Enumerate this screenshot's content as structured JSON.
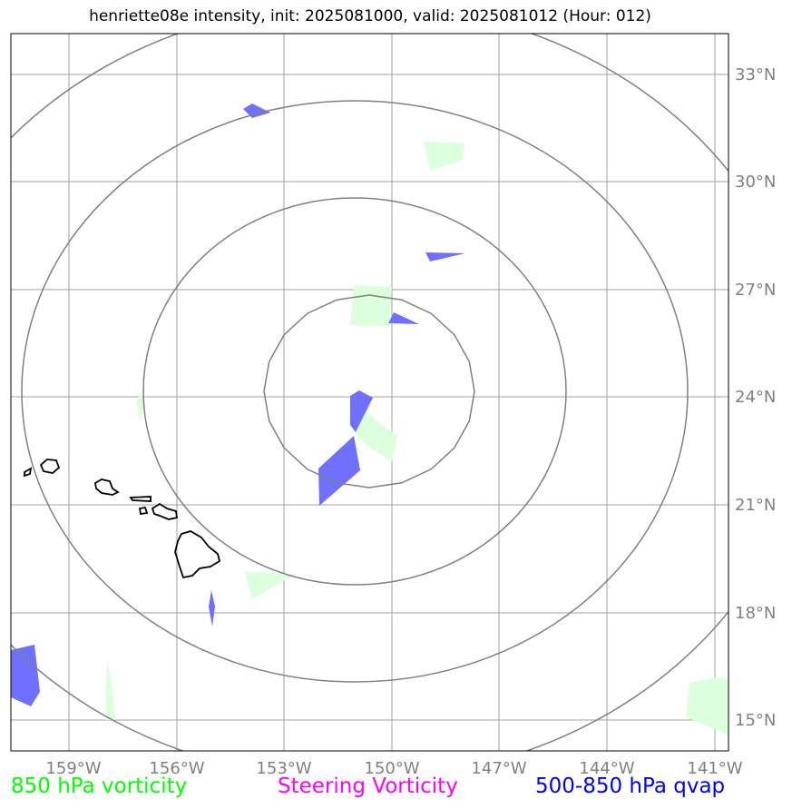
{
  "title": "henriette08e intensity, init: 2025081000, valid: 2025081012 (Hour: 012)",
  "axes": {
    "lon_labels": [
      "159°W",
      "156°W",
      "153°W",
      "150°W",
      "147°W",
      "144°W",
      "141°W"
    ],
    "lat_labels": [
      "33°N",
      "30°N",
      "27°N",
      "24°N",
      "21°N",
      "18°N",
      "15°N"
    ]
  },
  "legend": [
    {
      "label": "850 hPa vorticity",
      "color": "#00ff00"
    },
    {
      "label": "Steering Vorticity",
      "color": "#ff00ff"
    },
    {
      "label": "500-850 hPa qvap",
      "color": "#0000ff"
    }
  ],
  "colors": {
    "gridline": "#a0a0a0",
    "range_ring": "#808080",
    "coastline": "#000000",
    "vorticity_fill": "#dcffdc",
    "qvap_fill": "#7070ff"
  }
}
